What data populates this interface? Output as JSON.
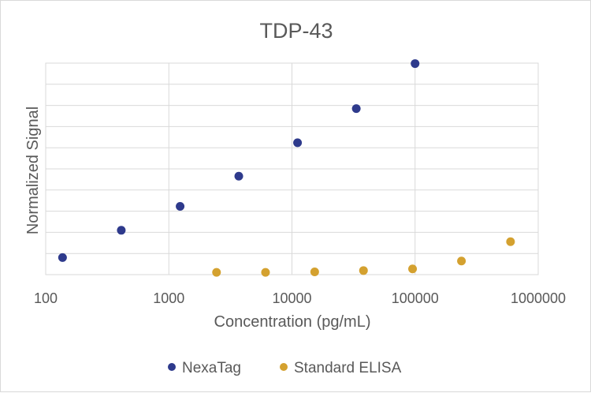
{
  "chart_data": {
    "type": "scatter",
    "title": "TDP-43",
    "xlabel": "Concentration (pg/mL)",
    "ylabel": "Normalized Signal",
    "x_scale": "log",
    "xlim": [
      100,
      1000000
    ],
    "ylim": [
      0,
      9.3
    ],
    "x_ticks": [
      "100",
      "1000",
      "10000",
      "100000",
      "1000000"
    ],
    "grid": true,
    "legend_position": "bottom",
    "series": [
      {
        "name": "NexaTag",
        "color": "#2e3a8c",
        "points": [
          {
            "x": 137,
            "y": 0.75
          },
          {
            "x": 411,
            "y": 1.95
          },
          {
            "x": 1235,
            "y": 3.0
          },
          {
            "x": 3700,
            "y": 4.33
          },
          {
            "x": 11100,
            "y": 5.8
          },
          {
            "x": 33300,
            "y": 7.3
          },
          {
            "x": 100000,
            "y": 9.28
          }
        ]
      },
      {
        "name": "Standard ELISA",
        "color": "#d4a12f",
        "points": [
          {
            "x": 2440,
            "y": 0.1
          },
          {
            "x": 6100,
            "y": 0.1
          },
          {
            "x": 15300,
            "y": 0.12
          },
          {
            "x": 38100,
            "y": 0.18
          },
          {
            "x": 95400,
            "y": 0.25
          },
          {
            "x": 238000,
            "y": 0.6
          },
          {
            "x": 596000,
            "y": 1.45
          }
        ]
      }
    ]
  }
}
